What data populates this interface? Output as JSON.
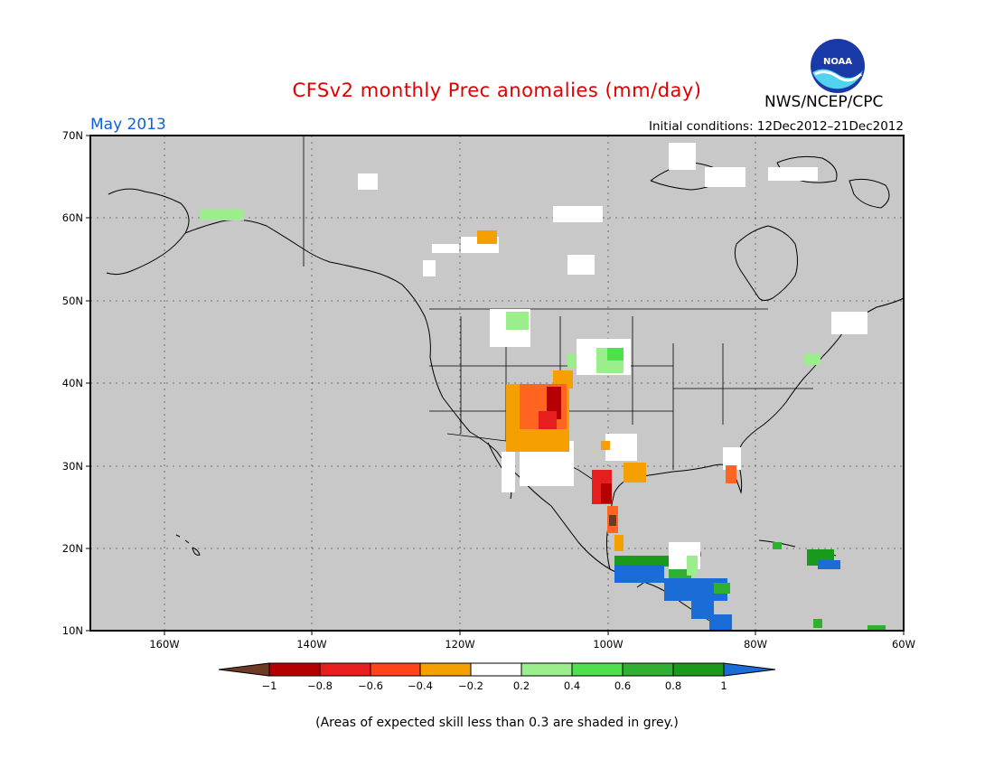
{
  "header": {
    "title": "CFSv2 monthly Prec anomalies (mm/day)",
    "target_month": "May 2013",
    "initial_conditions": "Initial conditions: 12Dec2012–21Dec2012",
    "agency": "NWS/NCEP/CPC",
    "logo_text": "NOAA"
  },
  "map": {
    "lon_range": [
      -170,
      -60
    ],
    "lat_range": [
      10,
      70
    ],
    "lat_ticks": [
      "10N",
      "20N",
      "30N",
      "40N",
      "50N",
      "60N",
      "70N"
    ],
    "lon_ticks": [
      "160W",
      "140W",
      "120W",
      "100W",
      "80W",
      "60W"
    ],
    "background_color": "#c8c8c8",
    "grid": true
  },
  "colorbar": {
    "labels": [
      "−1",
      "−0.8",
      "−0.6",
      "−0.4",
      "−0.2",
      "0.2",
      "0.4",
      "0.6",
      "0.8",
      "1"
    ],
    "colors": [
      "#6e3a24",
      "#b40000",
      "#e61e1e",
      "#ff6420",
      "#f5a000",
      "#ffffff",
      "#9aee8c",
      "#50e04c",
      "#30b030",
      "#1a9a1a",
      "#1c6cd8"
    ]
  },
  "footnote": "(Areas of expected skill less than 0.3 are shaded in grey.)"
}
